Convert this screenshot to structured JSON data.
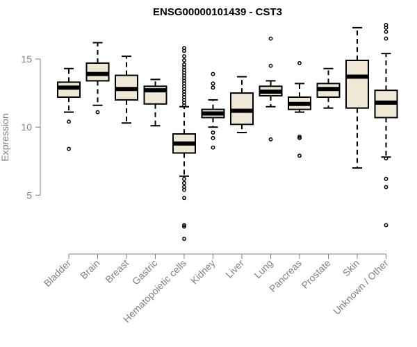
{
  "chart_data": {
    "type": "box",
    "title": "ENSG00000101439 - CST3",
    "xlabel": "",
    "ylabel": "Expression",
    "ylim": [
      1.5,
      17.6
    ],
    "yticks": [
      5,
      10,
      15
    ],
    "categories": [
      "Bladder",
      "Brain",
      "Breast",
      "Gastric",
      "Hematopoietic cells",
      "Kidney",
      "Liver",
      "Lung",
      "Pancreas",
      "Prostate",
      "Skin",
      "Unknown / Other"
    ],
    "boxes": [
      {
        "name": "Bladder",
        "whisker_low": 11.1,
        "q1": 12.2,
        "median": 12.9,
        "q3": 13.3,
        "whisker_high": 14.3,
        "outliers": [
          10.4,
          8.4
        ]
      },
      {
        "name": "Brain",
        "whisker_low": 11.6,
        "q1": 13.4,
        "median": 13.9,
        "q3": 14.7,
        "whisker_high": 16.2,
        "outliers": [
          11.1
        ]
      },
      {
        "name": "Breast",
        "whisker_low": 10.3,
        "q1": 12.0,
        "median": 12.8,
        "q3": 13.8,
        "whisker_high": 15.2,
        "outliers": []
      },
      {
        "name": "Gastric",
        "whisker_low": 10.1,
        "q1": 11.7,
        "median": 12.7,
        "q3": 13.0,
        "whisker_high": 13.5,
        "outliers": []
      },
      {
        "name": "Hematopoietic cells",
        "whisker_low": 6.4,
        "q1": 8.1,
        "median": 8.8,
        "q3": 9.5,
        "whisker_high": 11.5,
        "outliers": [
          15.8,
          15.6,
          15.2,
          14.9,
          14.6,
          14.4,
          14.2,
          14.0,
          13.8,
          13.6,
          13.4,
          13.2,
          13.0,
          12.8,
          12.6,
          12.4,
          12.2,
          12.0,
          11.8,
          11.6,
          6.2,
          5.9,
          5.6,
          5.4,
          4.8,
          2.8,
          2.7,
          1.8
        ]
      },
      {
        "name": "Kidney",
        "whisker_low": 10.0,
        "q1": 10.7,
        "median": 11.0,
        "q3": 11.3,
        "whisker_high": 12.0,
        "outliers": [
          13.9,
          13.2,
          12.9,
          9.6,
          9.2,
          8.5
        ]
      },
      {
        "name": "Liver",
        "whisker_low": 9.6,
        "q1": 10.2,
        "median": 11.2,
        "q3": 12.5,
        "whisker_high": 13.7,
        "outliers": []
      },
      {
        "name": "Lung",
        "whisker_low": 11.5,
        "q1": 12.3,
        "median": 12.6,
        "q3": 13.0,
        "whisker_high": 13.4,
        "outliers": [
          16.5,
          14.5,
          9.1
        ]
      },
      {
        "name": "Pancreas",
        "whisker_low": 11.1,
        "q1": 11.3,
        "median": 11.7,
        "q3": 12.2,
        "whisker_high": 13.2,
        "outliers": [
          14.7,
          9.3,
          9.2,
          7.9
        ]
      },
      {
        "name": "Prostate",
        "whisker_low": 11.4,
        "q1": 12.2,
        "median": 12.8,
        "q3": 13.2,
        "whisker_high": 14.3,
        "outliers": []
      },
      {
        "name": "Skin",
        "whisker_low": 7.0,
        "q1": 11.4,
        "median": 13.7,
        "q3": 14.9,
        "whisker_high": 17.3,
        "outliers": []
      },
      {
        "name": "Unknown / Other",
        "whisker_low": 7.8,
        "q1": 10.7,
        "median": 11.8,
        "q3": 12.7,
        "whisker_high": 15.4,
        "outliers": [
          17.5,
          17.3,
          17.0,
          16.5,
          7.7,
          6.2,
          5.6,
          2.8
        ]
      }
    ],
    "box_fill": "#eee8d5",
    "stroke_color": "#000000",
    "axis_color": "#808080"
  }
}
